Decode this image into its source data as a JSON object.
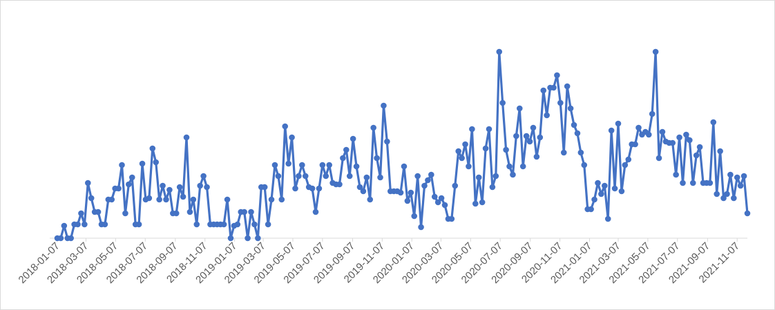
{
  "chart_data": {
    "type": "line",
    "title": "",
    "xlabel": "",
    "ylabel": "",
    "grid": false,
    "legend": "none",
    "line_color": "#4472C4",
    "axis_color": "#d9d9d9",
    "ylim": [
      0,
      270
    ],
    "x_tick_labels": [
      "2018-01-07",
      "2018-03-07",
      "2018-05-07",
      "2018-07-07",
      "2018-09-07",
      "2018-11-07",
      "2019-01-07",
      "2019-03-07",
      "2019-05-07",
      "2019-07-07",
      "2019-09-07",
      "2019-11-07",
      "2020-01-07",
      "2020-03-07",
      "2020-05-07",
      "2020-07-07",
      "2020-09-07",
      "2020-11-07",
      "2021-01-07",
      "2021-03-07",
      "2021-05-07",
      "2021-07-07",
      "2021-09-07",
      "2021-11-07"
    ],
    "start_date": "2018-01-07",
    "x_interval": "weekly",
    "values": [
      0,
      0,
      18,
      0,
      0,
      20,
      20,
      36,
      20,
      80,
      58,
      38,
      38,
      20,
      20,
      56,
      56,
      72,
      72,
      106,
      36,
      78,
      88,
      20,
      20,
      108,
      56,
      58,
      130,
      110,
      56,
      76,
      56,
      70,
      36,
      36,
      74,
      60,
      146,
      38,
      56,
      20,
      76,
      90,
      74,
      20,
      20,
      20,
      20,
      20,
      56,
      0,
      18,
      20,
      38,
      38,
      0,
      38,
      20,
      0,
      74,
      74,
      20,
      56,
      106,
      90,
      56,
      162,
      108,
      146,
      72,
      90,
      106,
      90,
      74,
      72,
      38,
      72,
      106,
      90,
      106,
      80,
      78,
      78,
      116,
      128,
      90,
      144,
      104,
      74,
      68,
      88,
      56,
      160,
      116,
      88,
      192,
      140,
      68,
      68,
      68,
      66,
      104,
      54,
      66,
      32,
      90,
      16,
      76,
      84,
      92,
      60,
      52,
      58,
      48,
      28,
      28,
      76,
      126,
      116,
      136,
      104,
      158,
      50,
      88,
      52,
      130,
      158,
      74,
      90,
      270,
      196,
      128,
      104,
      92,
      148,
      188,
      104,
      148,
      140,
      160,
      118,
      146,
      214,
      178,
      218,
      218,
      236,
      196,
      124,
      220,
      188,
      164,
      152,
      124,
      106,
      42,
      42,
      56,
      80,
      64,
      76,
      28,
      156,
      72,
      166,
      68,
      106,
      114,
      136,
      136,
      160,
      150,
      154,
      150,
      180,
      270,
      116,
      154,
      140,
      138,
      138,
      92,
      146,
      80,
      150,
      142,
      80,
      120,
      132,
      80,
      80,
      80,
      168,
      64,
      126,
      58,
      64,
      92,
      58,
      88,
      76,
      90,
      36
    ]
  }
}
